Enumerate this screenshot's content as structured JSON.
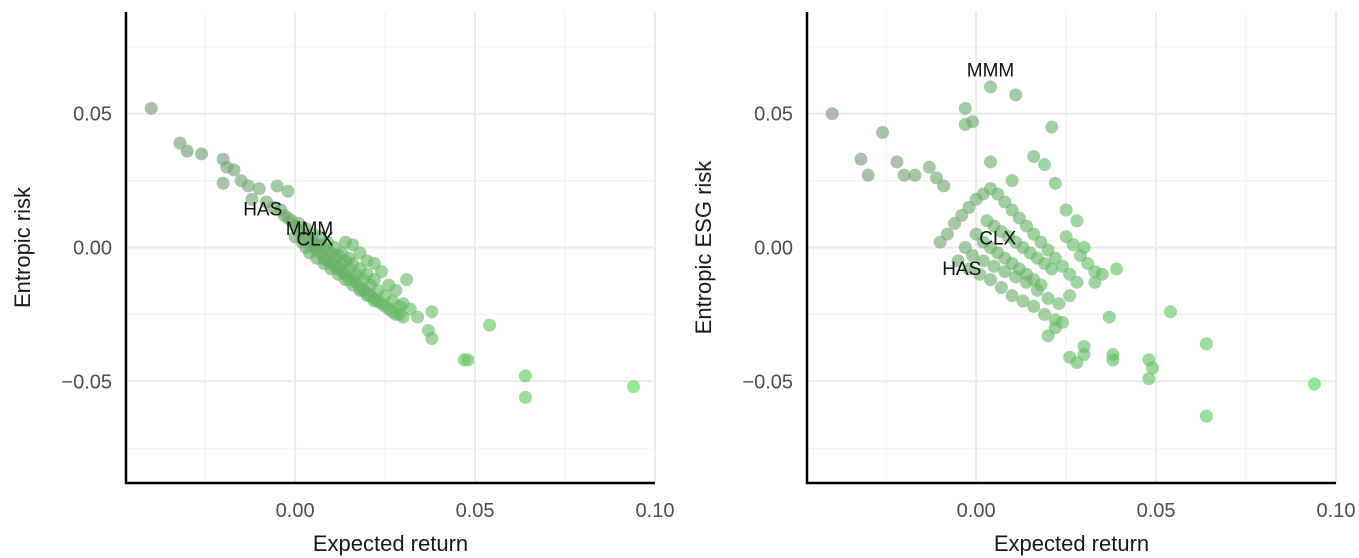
{
  "colors": {
    "low": "#7f7f7f",
    "high": "#55dd55",
    "grid": "#ebebeb",
    "axis": "#000000"
  },
  "chart_data": [
    {
      "type": "scatter",
      "title": "",
      "xlabel": "Expected return",
      "ylabel": "Entropic risk",
      "xlim": [
        -0.047,
        0.1
      ],
      "ylim": [
        -0.088,
        0.088
      ],
      "xticks": [
        0.0,
        0.05,
        0.1
      ],
      "xtick_labels": [
        "0.00",
        "0.05",
        "0.10"
      ],
      "yticks": [
        -0.05,
        0.0,
        0.05
      ],
      "ytick_labels": [
        "−0.05",
        "0.00",
        "0.05"
      ],
      "annotations": [
        {
          "label": "HAS",
          "x": -0.009,
          "y": 0.0146
        },
        {
          "label": "MMM",
          "x": 0.004,
          "y": 0.0073
        },
        {
          "label": "CLX",
          "x": 0.0055,
          "y": 0.0034
        }
      ],
      "points": [
        [
          -0.04,
          0.052
        ],
        [
          -0.032,
          0.039
        ],
        [
          -0.03,
          0.036
        ],
        [
          -0.026,
          0.035
        ],
        [
          0.094,
          -0.052
        ],
        [
          0.064,
          -0.048
        ],
        [
          0.064,
          -0.056
        ],
        [
          0.054,
          -0.029
        ],
        [
          0.047,
          -0.042
        ],
        [
          0.048,
          -0.042
        ],
        [
          0.038,
          -0.024
        ],
        [
          0.037,
          -0.031
        ],
        [
          0.038,
          -0.034
        ],
        [
          0.034,
          -0.026
        ],
        [
          0.031,
          -0.012
        ],
        [
          -0.02,
          0.033
        ],
        [
          -0.019,
          0.03
        ],
        [
          -0.017,
          0.029
        ],
        [
          -0.02,
          0.024
        ],
        [
          -0.015,
          0.025
        ],
        [
          -0.013,
          0.023
        ],
        [
          -0.01,
          0.022
        ],
        [
          -0.005,
          0.023
        ],
        [
          -0.002,
          0.021
        ],
        [
          -0.012,
          0.018
        ],
        [
          -0.008,
          0.017
        ],
        [
          -0.006,
          0.015
        ],
        [
          -0.003,
          0.012
        ],
        [
          -0.001,
          0.01
        ],
        [
          0.0,
          0.008
        ],
        [
          0.001,
          0.006
        ],
        [
          0.002,
          0.005
        ],
        [
          0.003,
          0.003
        ],
        [
          0.004,
          0.002
        ],
        [
          0.005,
          0.0
        ],
        [
          0.006,
          -0.001
        ],
        [
          0.007,
          -0.002
        ],
        [
          0.008,
          -0.004
        ],
        [
          0.009,
          -0.005
        ],
        [
          0.01,
          -0.006
        ],
        [
          0.011,
          -0.007
        ],
        [
          0.012,
          -0.008
        ],
        [
          0.013,
          -0.009
        ],
        [
          0.014,
          -0.01
        ],
        [
          0.015,
          -0.012
        ],
        [
          0.016,
          -0.012
        ],
        [
          0.017,
          -0.013
        ],
        [
          0.018,
          -0.015
        ],
        [
          0.019,
          -0.016
        ],
        [
          0.02,
          -0.017
        ],
        [
          0.021,
          -0.018
        ],
        [
          0.022,
          -0.019
        ],
        [
          0.023,
          -0.02
        ],
        [
          0.024,
          -0.021
        ],
        [
          0.025,
          -0.022
        ],
        [
          0.026,
          -0.023
        ],
        [
          0.027,
          -0.024
        ],
        [
          0.028,
          -0.025
        ],
        [
          0.029,
          -0.025
        ],
        [
          0.03,
          -0.026
        ],
        [
          0.005,
          0.002
        ],
        [
          0.006,
          0.001
        ],
        [
          0.008,
          0.0
        ],
        [
          0.01,
          -0.002
        ],
        [
          0.012,
          -0.003
        ],
        [
          0.014,
          -0.005
        ],
        [
          0.016,
          -0.006
        ],
        [
          0.018,
          -0.008
        ],
        [
          0.02,
          -0.01
        ],
        [
          0.022,
          -0.012
        ],
        [
          0.004,
          -0.002
        ],
        [
          0.006,
          -0.004
        ],
        [
          0.008,
          -0.006
        ],
        [
          0.01,
          -0.008
        ],
        [
          0.012,
          -0.01
        ],
        [
          0.014,
          -0.012
        ],
        [
          0.016,
          -0.014
        ],
        [
          0.018,
          -0.016
        ],
        [
          0.02,
          -0.018
        ],
        [
          0.022,
          -0.02
        ],
        [
          0.014,
          0.002
        ],
        [
          0.016,
          0.001
        ],
        [
          0.018,
          -0.002
        ],
        [
          0.02,
          -0.005
        ],
        [
          0.022,
          -0.006
        ],
        [
          0.024,
          -0.009
        ],
        [
          0.026,
          -0.014
        ],
        [
          0.028,
          -0.016
        ],
        [
          0.03,
          -0.021
        ],
        [
          0.032,
          -0.023
        ],
        [
          0.0,
          0.004
        ],
        [
          0.002,
          0.002
        ],
        [
          0.003,
          0.0
        ],
        [
          0.007,
          0.001
        ],
        [
          0.009,
          -0.001
        ],
        [
          0.011,
          -0.004
        ],
        [
          0.013,
          -0.006
        ],
        [
          0.015,
          -0.008
        ],
        [
          0.017,
          -0.01
        ],
        [
          0.019,
          -0.012
        ],
        [
          0.021,
          -0.014
        ],
        [
          0.023,
          -0.016
        ],
        [
          0.025,
          -0.018
        ],
        [
          0.027,
          -0.02
        ],
        [
          0.029,
          -0.022
        ],
        [
          -0.004,
          0.014
        ],
        [
          -0.002,
          0.011
        ],
        [
          0.001,
          0.009
        ],
        [
          0.003,
          0.007
        ],
        [
          0.005,
          0.005
        ],
        [
          0.007,
          0.004
        ],
        [
          0.009,
          0.002
        ],
        [
          0.011,
          0.0
        ],
        [
          0.013,
          -0.002
        ],
        [
          0.015,
          -0.004
        ]
      ]
    },
    {
      "type": "scatter",
      "title": "",
      "xlabel": "Expected return",
      "ylabel": "Entropic ESG risk",
      "xlim": [
        -0.047,
        0.1
      ],
      "ylim": [
        -0.088,
        0.088
      ],
      "xticks": [
        0.0,
        0.05,
        0.1
      ],
      "xtick_labels": [
        "0.00",
        "0.05",
        "0.10"
      ],
      "yticks": [
        -0.05,
        0.0,
        0.05
      ],
      "ytick_labels": [
        "−0.05",
        "0.00",
        "0.05"
      ],
      "annotations": [
        {
          "label": "MMM",
          "x": 0.004,
          "y": 0.0666
        },
        {
          "label": "CLX",
          "x": 0.006,
          "y": 0.0037
        },
        {
          "label": "HAS",
          "x": -0.004,
          "y": -0.0077
        }
      ],
      "points": [
        [
          -0.04,
          0.05
        ],
        [
          -0.026,
          0.043
        ],
        [
          -0.032,
          0.033
        ],
        [
          -0.03,
          0.027
        ],
        [
          -0.022,
          0.032
        ],
        [
          -0.02,
          0.027
        ],
        [
          -0.017,
          0.027
        ],
        [
          -0.013,
          0.03
        ],
        [
          -0.011,
          0.026
        ],
        [
          -0.009,
          0.023
        ],
        [
          -0.003,
          0.052
        ],
        [
          -0.003,
          0.046
        ],
        [
          -0.001,
          0.047
        ],
        [
          0.004,
          0.06
        ],
        [
          0.011,
          0.057
        ],
        [
          0.021,
          0.045
        ],
        [
          0.016,
          0.034
        ],
        [
          0.019,
          0.031
        ],
        [
          0.004,
          0.032
        ],
        [
          0.01,
          0.025
        ],
        [
          0.094,
          -0.051
        ],
        [
          0.064,
          -0.063
        ],
        [
          0.064,
          -0.036
        ],
        [
          0.054,
          -0.024
        ],
        [
          0.048,
          -0.042
        ],
        [
          0.049,
          -0.045
        ],
        [
          0.048,
          -0.049
        ],
        [
          0.038,
          -0.04
        ],
        [
          0.038,
          -0.042
        ],
        [
          0.037,
          -0.026
        ],
        [
          0.039,
          -0.008
        ],
        [
          0.035,
          -0.01
        ],
        [
          0.033,
          -0.013
        ],
        [
          0.03,
          -0.04
        ],
        [
          0.03,
          -0.037
        ],
        [
          0.028,
          -0.043
        ],
        [
          0.026,
          -0.041
        ],
        [
          0.02,
          -0.033
        ],
        [
          0.022,
          -0.03
        ],
        [
          0.024,
          -0.028
        ],
        [
          -0.01,
          0.002
        ],
        [
          -0.008,
          0.005
        ],
        [
          -0.006,
          0.009
        ],
        [
          -0.004,
          0.012
        ],
        [
          -0.002,
          0.015
        ],
        [
          0.0,
          0.018
        ],
        [
          0.002,
          0.02
        ],
        [
          0.004,
          0.022
        ],
        [
          0.006,
          0.02
        ],
        [
          0.008,
          0.017
        ],
        [
          0.01,
          0.014
        ],
        [
          0.012,
          0.011
        ],
        [
          0.014,
          0.008
        ],
        [
          0.016,
          0.005
        ],
        [
          0.018,
          0.002
        ],
        [
          0.02,
          -0.001
        ],
        [
          0.022,
          -0.004
        ],
        [
          0.024,
          -0.007
        ],
        [
          0.026,
          -0.01
        ],
        [
          0.028,
          -0.013
        ],
        [
          -0.005,
          -0.005
        ],
        [
          -0.002,
          -0.008
        ],
        [
          0.001,
          -0.01
        ],
        [
          0.004,
          -0.012
        ],
        [
          0.007,
          -0.015
        ],
        [
          0.01,
          -0.018
        ],
        [
          0.013,
          -0.02
        ],
        [
          0.016,
          -0.022
        ],
        [
          0.019,
          -0.025
        ],
        [
          0.022,
          -0.027
        ],
        [
          0.0,
          0.005
        ],
        [
          0.002,
          0.002
        ],
        [
          0.004,
          0.0
        ],
        [
          0.006,
          -0.002
        ],
        [
          0.008,
          -0.004
        ],
        [
          0.01,
          -0.006
        ],
        [
          0.012,
          -0.008
        ],
        [
          0.014,
          -0.01
        ],
        [
          0.016,
          -0.012
        ],
        [
          0.018,
          -0.014
        ],
        [
          0.003,
          0.01
        ],
        [
          0.005,
          0.008
        ],
        [
          0.007,
          0.006
        ],
        [
          0.009,
          0.004
        ],
        [
          0.011,
          0.002
        ],
        [
          0.013,
          0.0
        ],
        [
          0.015,
          -0.002
        ],
        [
          0.017,
          -0.004
        ],
        [
          0.019,
          -0.006
        ],
        [
          0.021,
          -0.008
        ],
        [
          -0.003,
          0.0
        ],
        [
          -0.001,
          -0.003
        ],
        [
          0.002,
          -0.005
        ],
        [
          0.005,
          -0.007
        ],
        [
          0.008,
          -0.009
        ],
        [
          0.011,
          -0.011
        ],
        [
          0.014,
          -0.013
        ],
        [
          0.017,
          -0.016
        ],
        [
          0.02,
          -0.019
        ],
        [
          0.023,
          -0.021
        ],
        [
          0.025,
          0.004
        ],
        [
          0.027,
          0.001
        ],
        [
          0.029,
          -0.003
        ],
        [
          0.031,
          -0.006
        ],
        [
          0.033,
          -0.009
        ],
        [
          0.025,
          0.014
        ],
        [
          0.022,
          0.024
        ],
        [
          0.028,
          0.01
        ],
        [
          0.03,
          0.0
        ],
        [
          0.026,
          -0.018
        ]
      ]
    }
  ]
}
